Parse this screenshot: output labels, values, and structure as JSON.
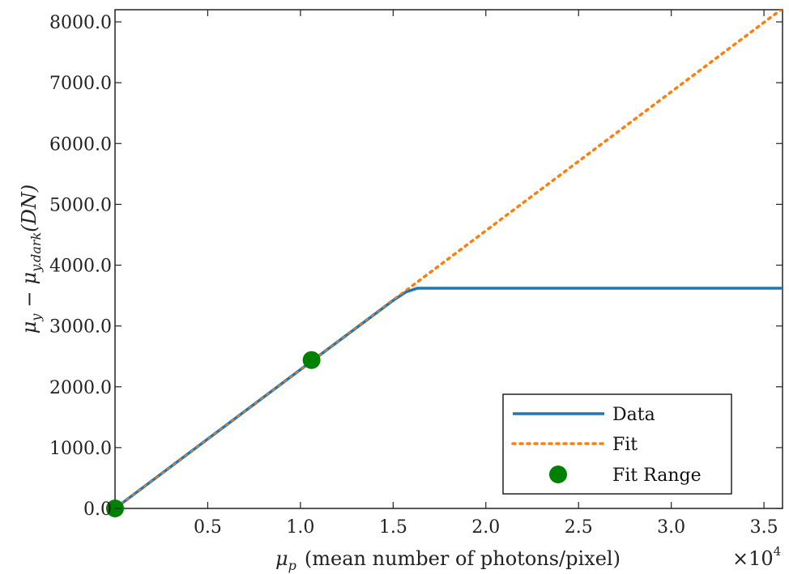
{
  "chart_data": {
    "type": "line",
    "xlabel": {
      "symbol": "μ",
      "subscript": "p",
      "text": "(mean number of photons/pixel)"
    },
    "ylabel": {
      "symbol1": "μ",
      "sub1": "y",
      "minus": "−",
      "symbol2": "μ",
      "sub2": "y.dark",
      "unit": "(DN)"
    },
    "x_multiplier": {
      "times": "×10",
      "exp": "4"
    },
    "xlim": [
      0,
      36000
    ],
    "ylim": [
      0,
      8200
    ],
    "x_ticks": [
      5000,
      10000,
      15000,
      20000,
      25000,
      30000,
      35000
    ],
    "x_tick_labels": [
      "0.5",
      "1.0",
      "1.5",
      "2.0",
      "2.5",
      "3.0",
      "3.5"
    ],
    "y_ticks": [
      0,
      1000,
      2000,
      3000,
      4000,
      5000,
      6000,
      7000,
      8000
    ],
    "y_tick_labels": [
      "0.0",
      "1000.0",
      "2000.0",
      "3000.0",
      "4000.0",
      "5000.0",
      "6000.0",
      "7000.0",
      "8000.0"
    ],
    "grid": false,
    "legend_position": "bottom-right",
    "series": [
      {
        "name": "Data",
        "style": "solid",
        "color": "#1f77b4",
        "x": [
          0,
          10600,
          15000,
          15700,
          16300,
          36000
        ],
        "y": [
          0,
          2420,
          3420,
          3560,
          3620,
          3620
        ]
      },
      {
        "name": "Fit",
        "style": "dotted",
        "color": "#ff7f0e",
        "x": [
          0,
          36000
        ],
        "y": [
          0,
          8220
        ]
      },
      {
        "name": "Fit Range",
        "style": "markers",
        "color": "#008000",
        "x": [
          0,
          10600
        ],
        "y": [
          0,
          2440
        ]
      }
    ]
  }
}
